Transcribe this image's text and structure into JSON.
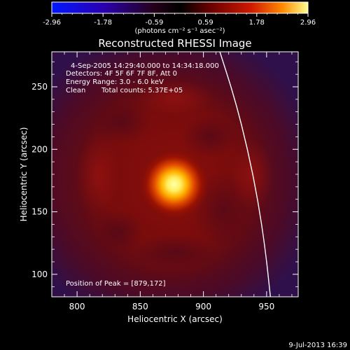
{
  "chart_data": {
    "type": "heatmap",
    "title": "Reconstructed RHESSI Image",
    "xlabel": "Heliocentric X (arcsec)",
    "ylabel": "Heliocentric Y (arcsec)",
    "xlim": [
      780,
      975
    ],
    "ylim": [
      82,
      278
    ],
    "xticks": [
      800,
      850,
      900,
      950
    ],
    "yticks": [
      100,
      150,
      200,
      250
    ],
    "colorbar": {
      "range": [
        -2.96,
        2.96
      ],
      "ticks": [
        "-2.96",
        "-1.78",
        "-0.59",
        "0.59",
        "1.78",
        "2.96"
      ],
      "unit_label": "(photons cm⁻² s⁻¹ asec⁻²)",
      "colormap": [
        "#0000ff",
        "#3000a0",
        "#000000",
        "#600000",
        "#c01000",
        "#ff8000",
        "#ffff80"
      ]
    },
    "annotations": {
      "time": "4-Sep-2005 14:29:40.000 to 14:34:18.000",
      "detectors": "Detectors: 4F 5F 6F 7F 8F, Att 0",
      "energy": "Energy Range: 3.0 - 6.0 keV",
      "clean_label": "Clean",
      "counts": "Total counts: 5.37E+05",
      "peak": "Position of Peak = [879,172]"
    },
    "peak": [
      879,
      172
    ],
    "limb_curve": [
      [
        913,
        278
      ],
      [
        925,
        240
      ],
      [
        935,
        200
      ],
      [
        943,
        160
      ],
      [
        949,
        120
      ],
      [
        953,
        82
      ]
    ],
    "footer": "9-Jul-2013 16:39"
  }
}
